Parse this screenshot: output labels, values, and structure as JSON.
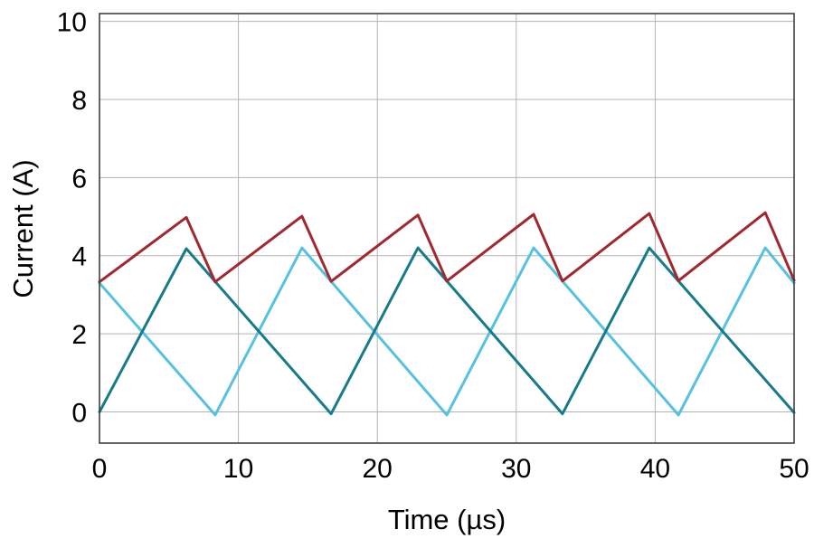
{
  "chart_data": {
    "type": "line",
    "title": "",
    "xlabel": "Time (µs)",
    "ylabel": "Current (A)",
    "xlim": [
      0,
      50
    ],
    "ylim": [
      -0.8,
      10.2
    ],
    "xticks": [
      0,
      10,
      20,
      30,
      40,
      50
    ],
    "yticks": [
      0,
      2,
      4,
      6,
      8,
      10
    ],
    "grid": true,
    "legend": "none",
    "colors": {
      "red_trace": "#a1282e",
      "teal_trace": "#177c8a",
      "cyan_trace": "#56c1e1",
      "grid": "#b3b3b3",
      "border": "#3f3f3f"
    },
    "series": [
      {
        "name": "cyan-trace",
        "color": "#56c1e1",
        "points": [
          [
            0,
            3.3
          ],
          [
            8.33,
            -0.08
          ],
          [
            14.58,
            4.2
          ],
          [
            25,
            -0.08
          ],
          [
            31.25,
            4.2
          ],
          [
            41.67,
            -0.08
          ],
          [
            47.92,
            4.2
          ],
          [
            50,
            3.3
          ]
        ]
      },
      {
        "name": "teal-trace",
        "color": "#177c8a",
        "points": [
          [
            0,
            0
          ],
          [
            6.25,
            4.18
          ],
          [
            16.67,
            -0.05
          ],
          [
            22.92,
            4.2
          ],
          [
            33.33,
            -0.05
          ],
          [
            39.58,
            4.2
          ],
          [
            50,
            -0.02
          ]
        ]
      },
      {
        "name": "red-trace",
        "color": "#a1282e",
        "points": [
          [
            0,
            3.33
          ],
          [
            6.25,
            4.98
          ],
          [
            8.33,
            3.33
          ],
          [
            14.58,
            5.01
          ],
          [
            16.67,
            3.34
          ],
          [
            22.92,
            5.04
          ],
          [
            25,
            3.35
          ],
          [
            31.25,
            5.06
          ],
          [
            33.33,
            3.35
          ],
          [
            39.58,
            5.08
          ],
          [
            41.67,
            3.36
          ],
          [
            47.92,
            5.1
          ],
          [
            50,
            3.37
          ]
        ]
      }
    ]
  }
}
